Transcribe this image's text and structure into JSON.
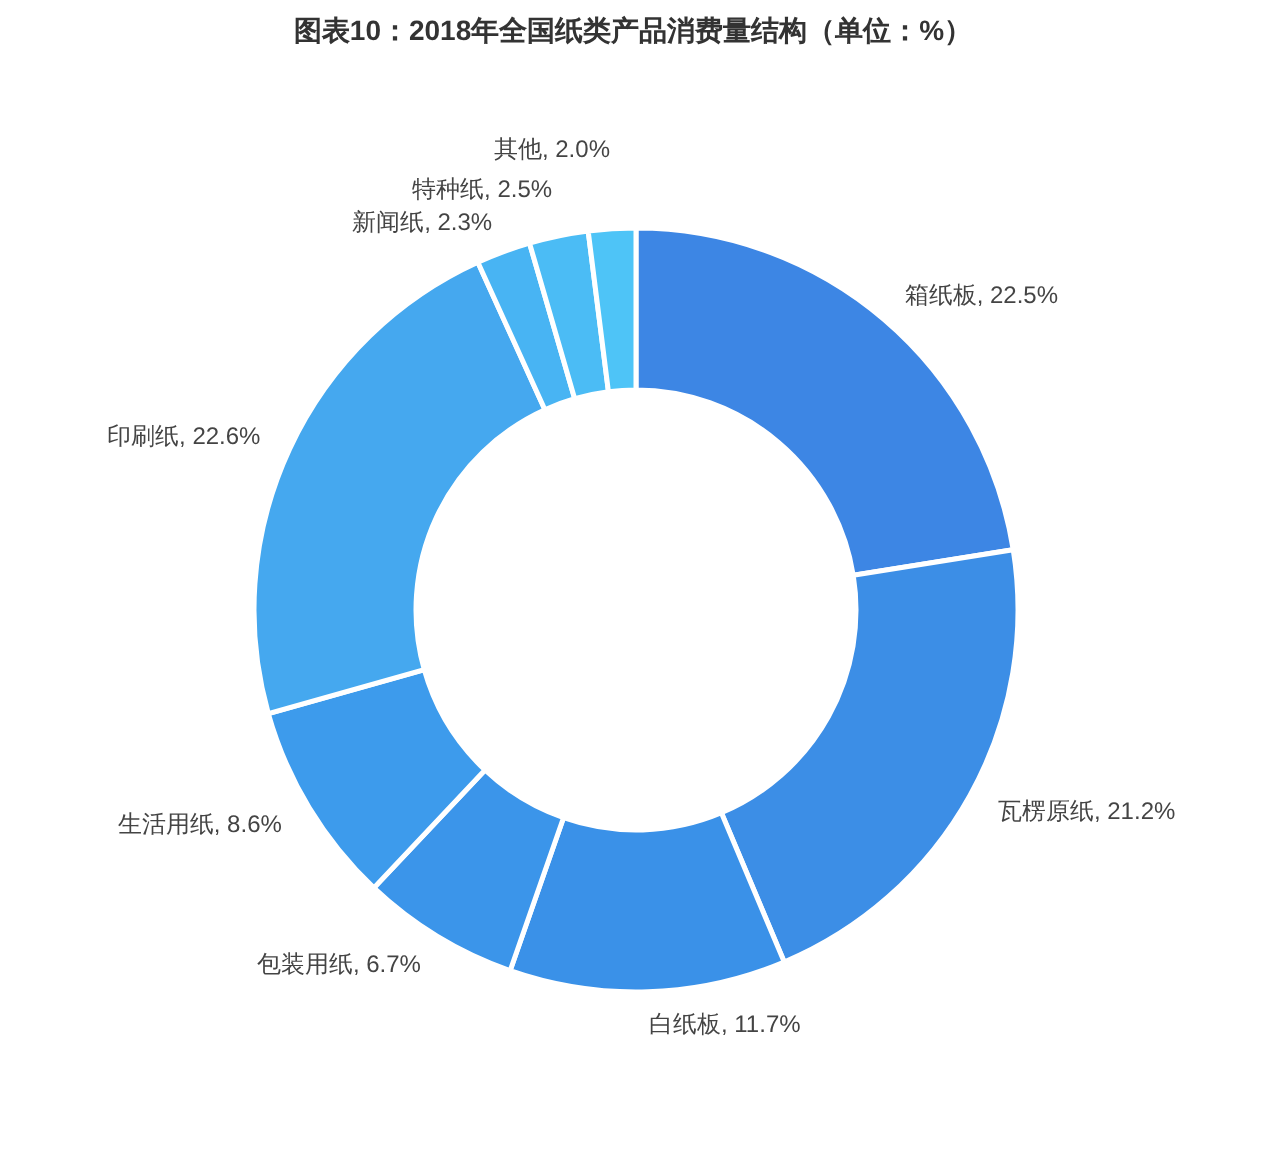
{
  "chart_data": {
    "type": "donut",
    "title": "图表10：2018年全国纸类产品消费量结构（单位：%）",
    "categories": [
      "箱纸板",
      "瓦楞原纸",
      "白纸板",
      "包装用纸",
      "生活用纸",
      "印刷纸",
      "新闻纸",
      "特种纸",
      "其他"
    ],
    "values": [
      22.5,
      21.2,
      11.7,
      6.7,
      8.6,
      22.6,
      2.3,
      2.5,
      2.0
    ],
    "value_labels": [
      "22.5%",
      "21.2%",
      "11.7%",
      "6.7%",
      "8.6%",
      "22.6%",
      "2.3%",
      "2.5%",
      "2.0%"
    ],
    "colors": [
      "#3d86e4",
      "#3c8ee6",
      "#3a91e8",
      "#3b95ea",
      "#3d9bec",
      "#45a8ef",
      "#48b4f3",
      "#4bbcf5",
      "#4ec4f7"
    ]
  }
}
